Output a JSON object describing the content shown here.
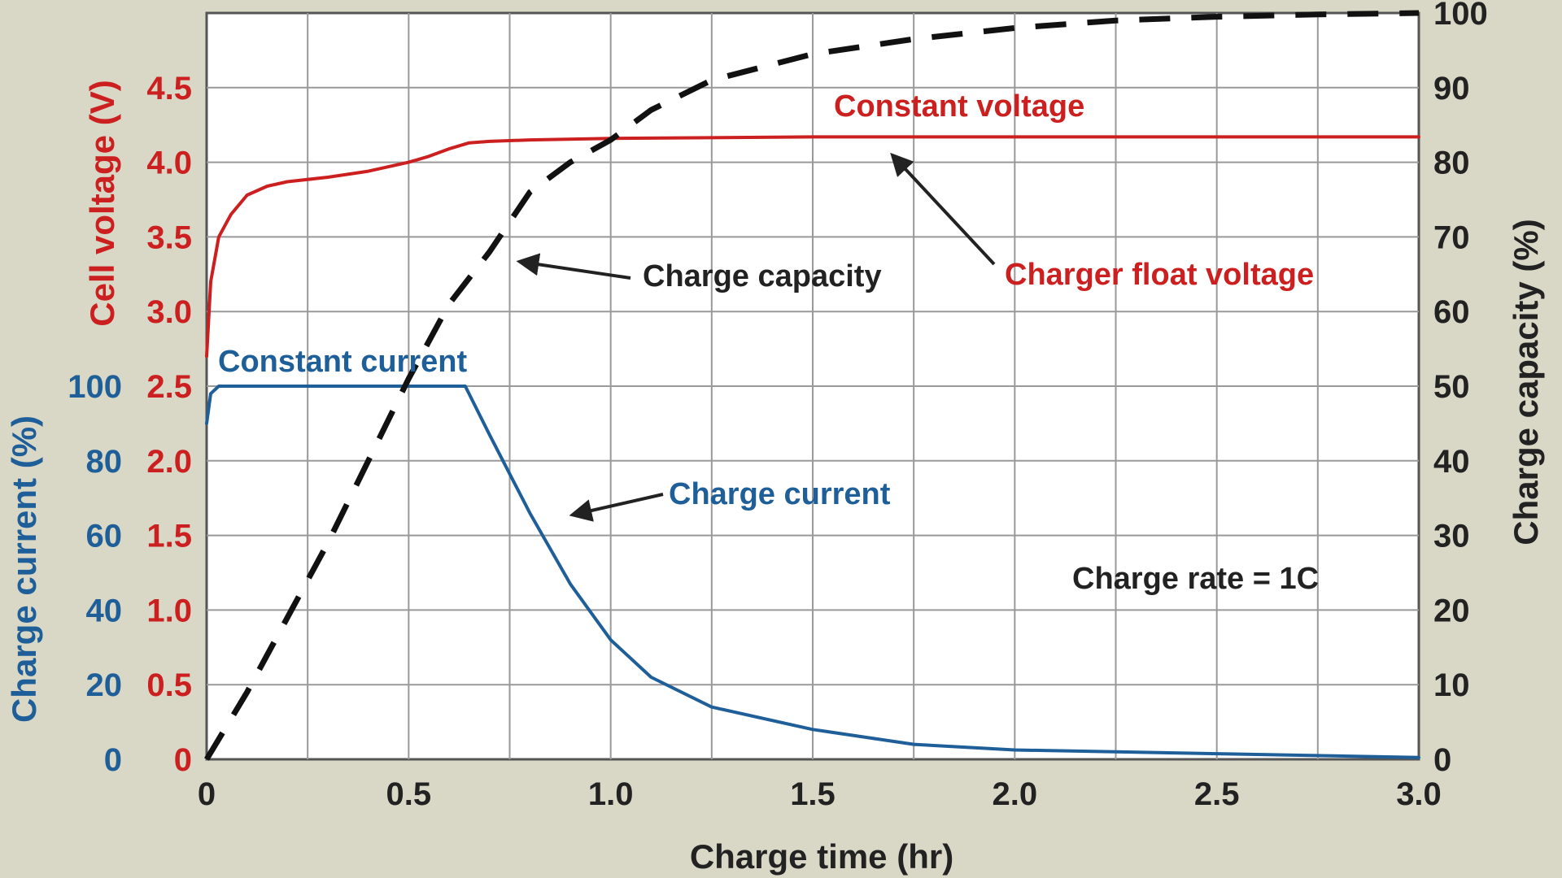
{
  "chart_data": {
    "type": "line",
    "title": "",
    "xlabel": "Charge time (hr)",
    "xlim": [
      0,
      3.0
    ],
    "x_ticks": [
      "0",
      "0.5",
      "1.0",
      "1.5",
      "2.0",
      "2.5",
      "3.0"
    ],
    "grid": true,
    "axes": {
      "voltage": {
        "label": "Cell voltage (V)",
        "ylim": [
          0,
          5.0
        ],
        "ticks": [
          "0",
          "0.5",
          "1.0",
          "1.5",
          "2.0",
          "2.5",
          "3.0",
          "3.5",
          "4.0",
          "4.5"
        ],
        "color": "#cc1f1f"
      },
      "current": {
        "label": "Charge current (%)",
        "ylim": [
          0,
          200
        ],
        "ticks": [
          "0",
          "20",
          "40",
          "60",
          "80",
          "100"
        ],
        "color": "#1f5f99"
      },
      "capacity": {
        "label": "Charge capacity (%)",
        "ylim": [
          0,
          100
        ],
        "ticks": [
          "0",
          "10",
          "20",
          "30",
          "40",
          "50",
          "60",
          "70",
          "80",
          "90",
          "100"
        ],
        "color": "#222222"
      }
    },
    "series": [
      {
        "name": "Cell voltage",
        "axis": "voltage",
        "color": "#cc1f1f",
        "style": "solid",
        "x": [
          0,
          0.01,
          0.03,
          0.06,
          0.1,
          0.15,
          0.2,
          0.3,
          0.4,
          0.5,
          0.55,
          0.6,
          0.65,
          0.7,
          0.8,
          1.0,
          1.5,
          2.0,
          2.5,
          3.0
        ],
        "y": [
          2.7,
          3.2,
          3.5,
          3.65,
          3.78,
          3.84,
          3.87,
          3.9,
          3.94,
          4.0,
          4.04,
          4.09,
          4.13,
          4.14,
          4.15,
          4.16,
          4.17,
          4.17,
          4.17,
          4.17
        ]
      },
      {
        "name": "Charge current",
        "axis": "current",
        "color": "#1f5f99",
        "style": "solid",
        "x": [
          0,
          0.01,
          0.03,
          0.1,
          0.3,
          0.5,
          0.64,
          0.7,
          0.8,
          0.9,
          1.0,
          1.1,
          1.25,
          1.5,
          1.75,
          2.0,
          2.5,
          3.0
        ],
        "y": [
          90,
          98,
          100,
          100,
          100,
          100,
          100,
          87,
          66,
          47,
          32,
          22,
          14,
          8,
          4,
          2.5,
          1.5,
          0.5
        ]
      },
      {
        "name": "Charge capacity",
        "axis": "capacity",
        "color": "#111111",
        "style": "dashed",
        "x": [
          0,
          0.1,
          0.2,
          0.3,
          0.4,
          0.5,
          0.6,
          0.7,
          0.75,
          0.8,
          0.9,
          1.0,
          1.1,
          1.25,
          1.5,
          1.75,
          2.0,
          2.25,
          2.5,
          2.75,
          3.0
        ],
        "y": [
          0,
          9,
          19,
          29,
          40,
          51,
          61,
          68,
          72,
          76,
          80,
          83,
          87,
          91,
          94.5,
          96.5,
          98,
          99,
          99.5,
          99.8,
          100
        ]
      }
    ],
    "annotations": {
      "constant_voltage": "Constant voltage",
      "charger_float_voltage": "Charger float voltage",
      "charge_capacity": "Charge capacity",
      "constant_current": "Constant current",
      "charge_current": "Charge current",
      "charge_rate": "Charge rate = 1C"
    }
  }
}
